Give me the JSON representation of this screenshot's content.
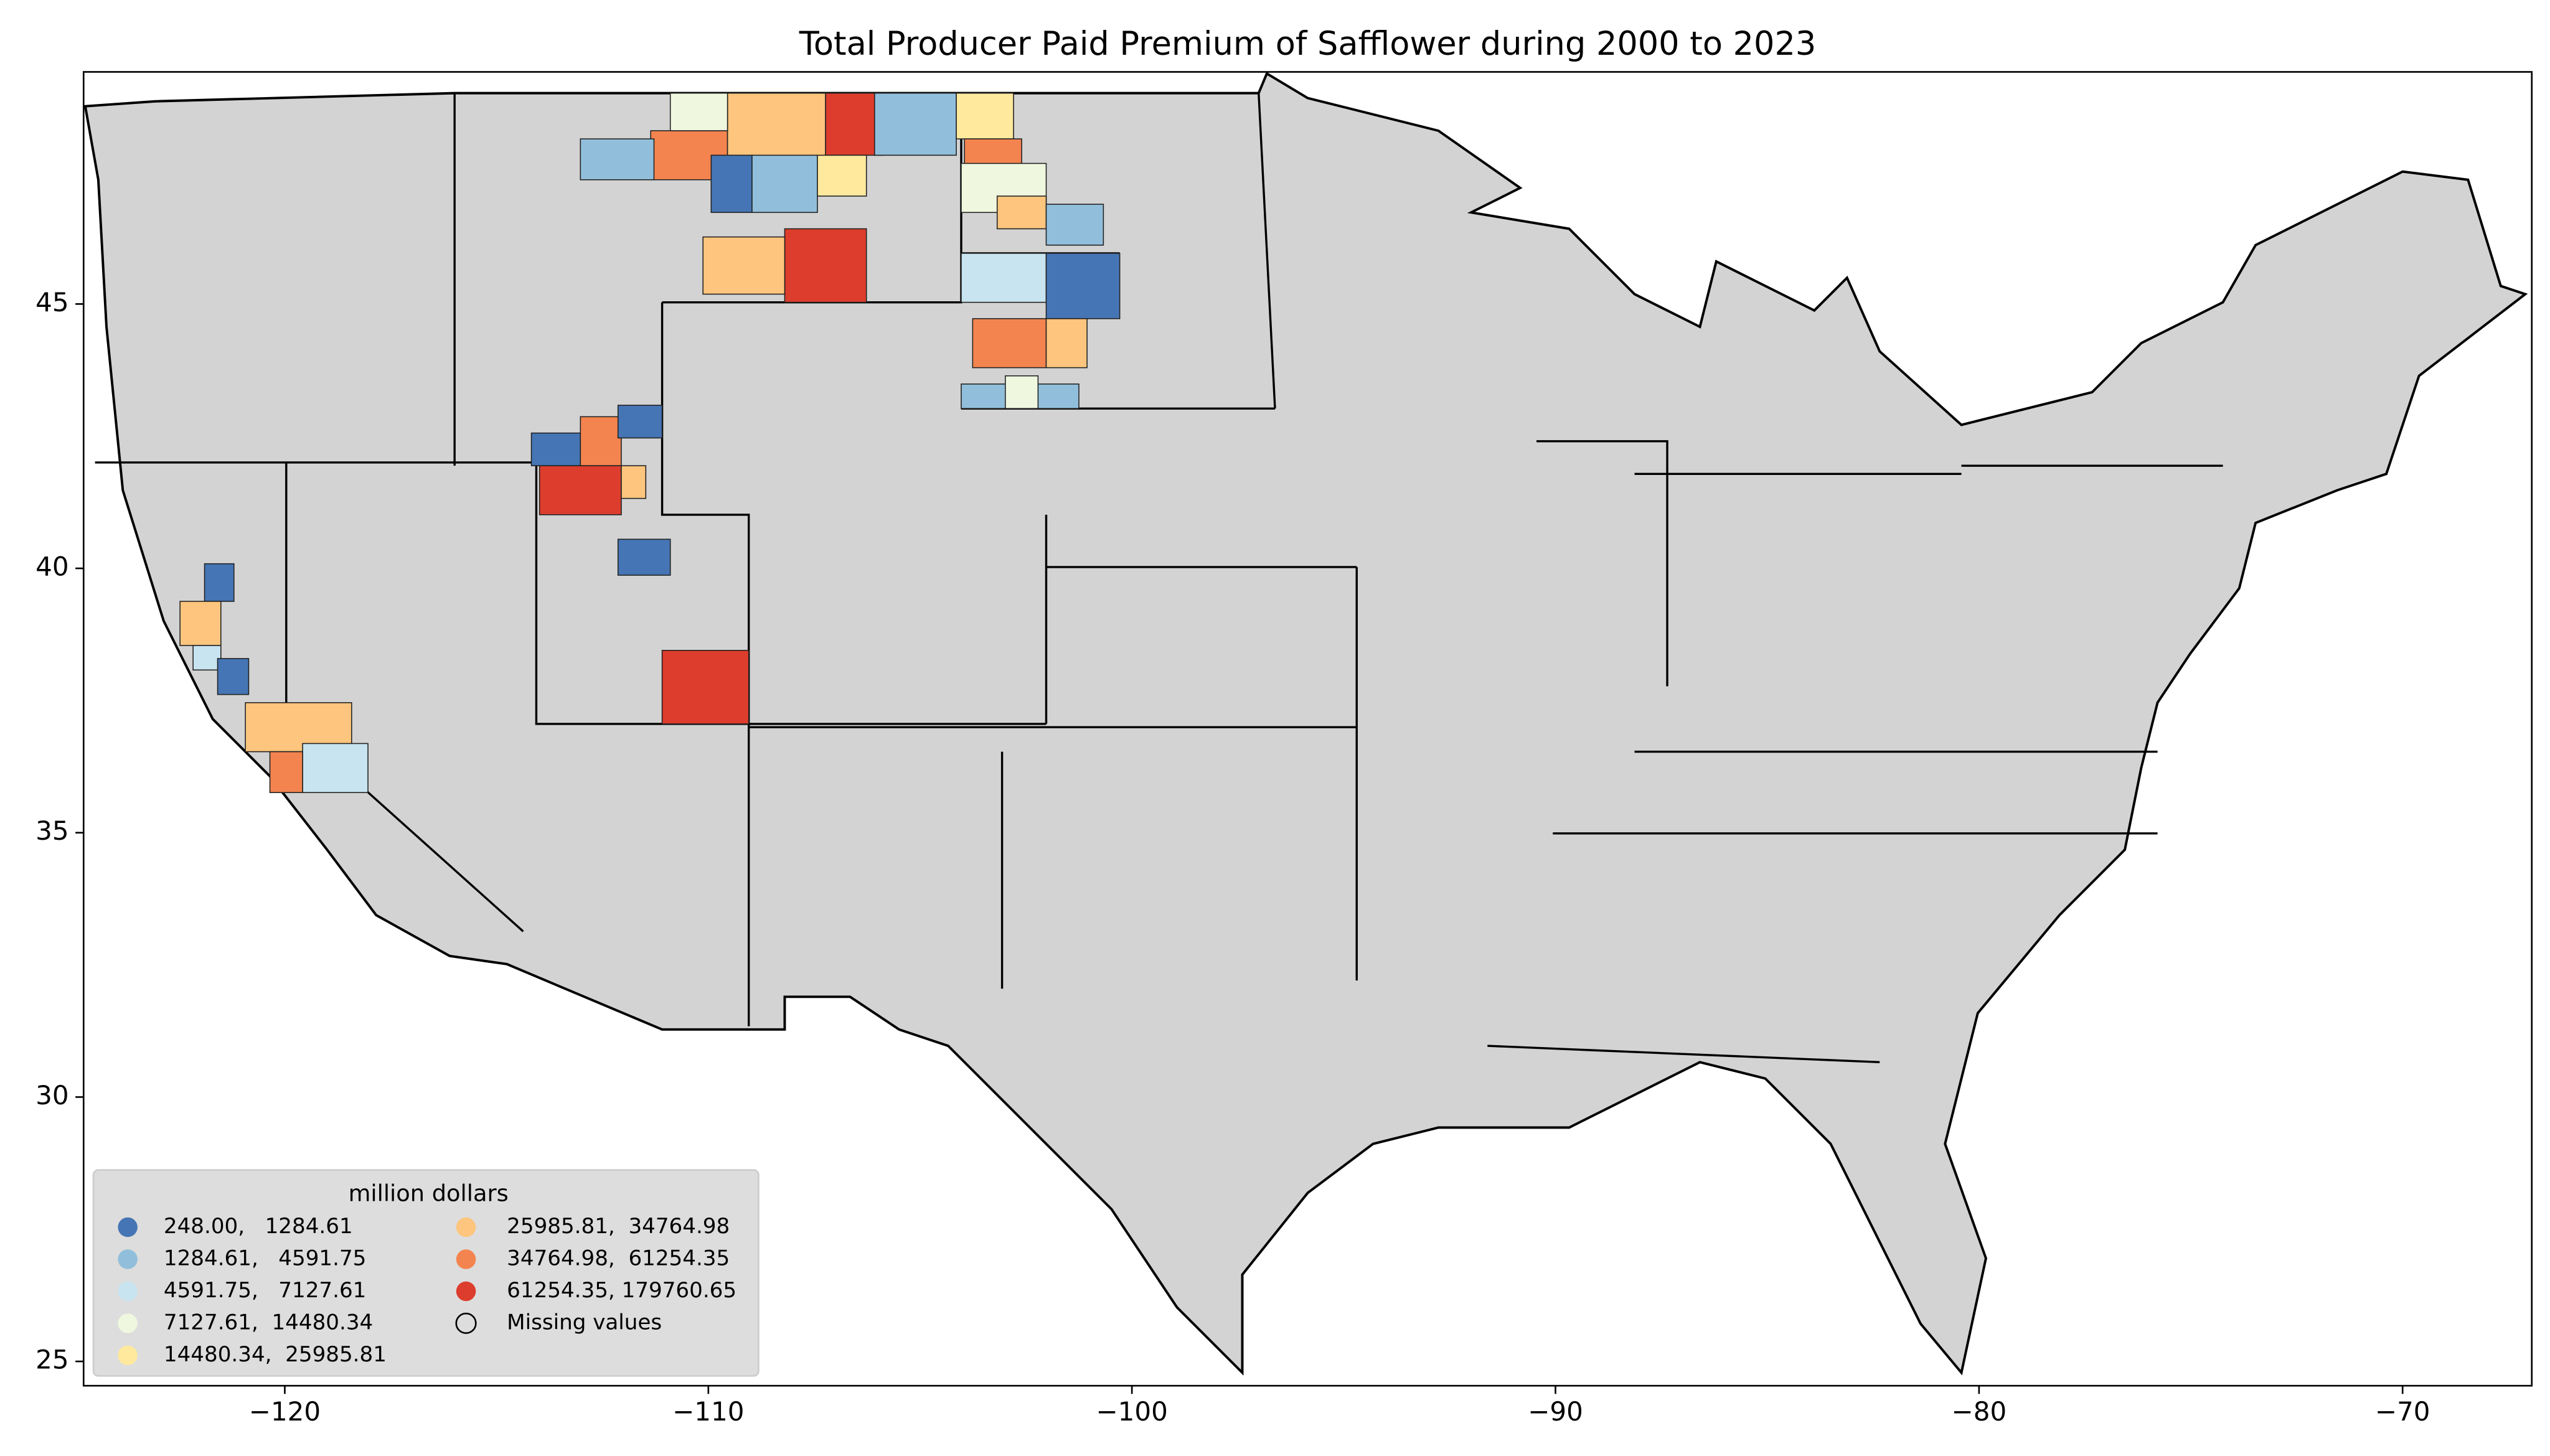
{
  "chart_data": {
    "type": "choropleth",
    "title": "Total Producer Paid Premium of Safflower during 2000 to 2023",
    "xlim": [
      -124.75,
      -66.95
    ],
    "ylim": [
      24.54,
      49.39
    ],
    "xticks": [
      {
        "value": -120,
        "label": "−120"
      },
      {
        "value": -110,
        "label": "−110"
      },
      {
        "value": -100,
        "label": "−100"
      },
      {
        "value": -90,
        "label": "−90"
      },
      {
        "value": -80,
        "label": "−80"
      },
      {
        "value": -70,
        "label": "−70"
      }
    ],
    "yticks": [
      25,
      30,
      35,
      40,
      45
    ],
    "land_color": "#d3d3d3",
    "legend": {
      "title": "million dollars",
      "location": "lower left",
      "entries": [
        {
          "label": "248.00,   1284.61",
          "color": "#4575b4"
        },
        {
          "label": "1284.61,   4591.75",
          "color": "#91bfdb"
        },
        {
          "label": "4591.75,   7127.61",
          "color": "#c8e4f0"
        },
        {
          "label": "7127.61,  14480.34",
          "color": "#eff8df"
        },
        {
          "label": "14480.34,  25985.81",
          "color": "#fee99d"
        },
        {
          "label": "25985.81,  34764.98",
          "color": "#fdc57d"
        },
        {
          "label": "34764.98,  61254.35",
          "color": "#f4844f"
        },
        {
          "label": "61254.35, 179760.65",
          "color": "#dd3d2d"
        }
      ],
      "missing_label": "Missing values"
    }
  }
}
